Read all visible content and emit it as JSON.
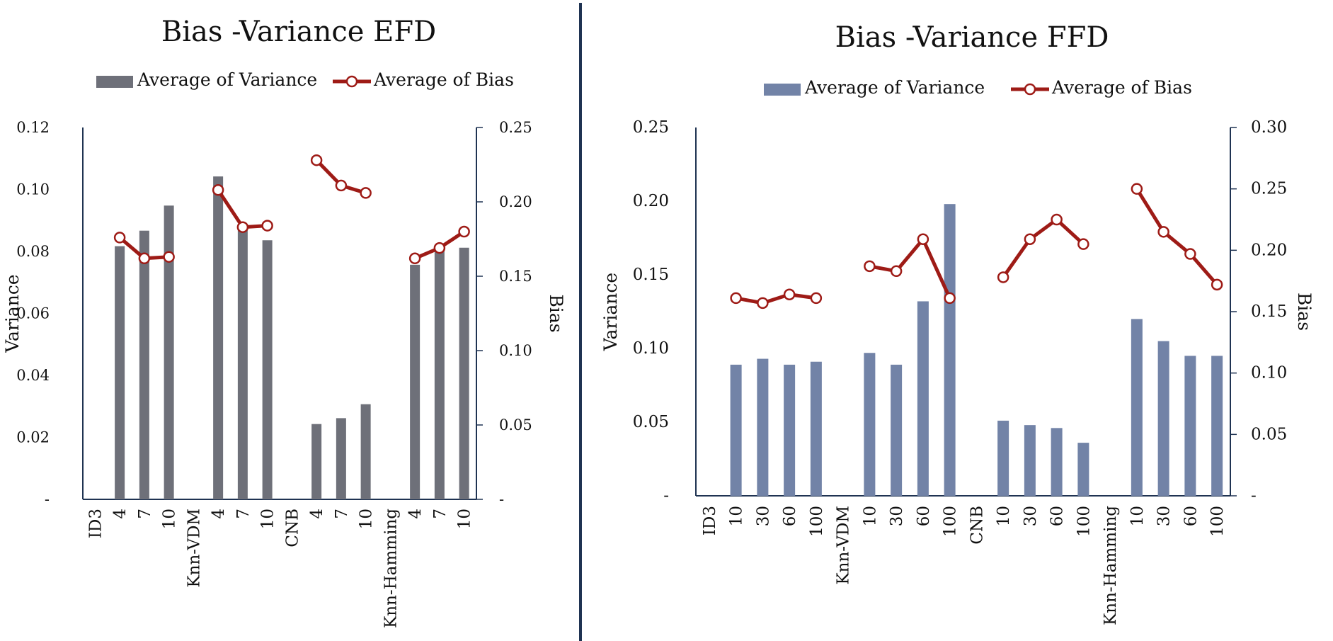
{
  "chart_data": [
    {
      "type": "bar",
      "title": "Bias -Variance EFD",
      "categories": [
        "ID3",
        "4",
        "7",
        "10",
        "Knn-VDM",
        "4",
        "7",
        "10",
        "CNB",
        "4",
        "7",
        "10",
        "Knn-Hamming",
        "4",
        "7",
        "10"
      ],
      "series": [
        {
          "name": "Average of Variance",
          "type": "bar",
          "axis": "left",
          "color": "#6e7079",
          "values": [
            null,
            0.0817,
            0.0867,
            0.0948,
            null,
            0.1042,
            0.0883,
            0.0836,
            null,
            0.0243,
            0.0262,
            0.0307,
            null,
            0.0757,
            0.0817,
            0.0812
          ]
        },
        {
          "name": "Average of Bias",
          "type": "line",
          "axis": "right",
          "color": "#9e1b16",
          "values": [
            null,
            0.176,
            0.162,
            0.163,
            null,
            0.208,
            0.183,
            0.184,
            null,
            0.228,
            0.211,
            0.206,
            null,
            0.162,
            0.169,
            0.18
          ]
        }
      ],
      "ylabel": "Variance",
      "ylim": [
        0,
        0.12
      ],
      "yticks": [
        "-",
        "0.02",
        "0.04",
        "0.06",
        "0.08",
        "0.10",
        "0.12"
      ],
      "y2label": "Bias",
      "y2lim": [
        0,
        0.25
      ],
      "y2ticks": [
        "-",
        "0.05",
        "0.10",
        "0.15",
        "0.20",
        "0.25"
      ],
      "legend": "top",
      "grid": false
    },
    {
      "type": "bar",
      "title": "Bias -Variance FFD",
      "categories": [
        "ID3",
        "10",
        "30",
        "60",
        "100",
        "Knn-VDM",
        "10",
        "30",
        "60",
        "100",
        "CNB",
        "10",
        "30",
        "60",
        "100",
        "Knn-Hamming",
        "10",
        "30",
        "60",
        "100"
      ],
      "series": [
        {
          "name": "Average of Variance",
          "type": "bar",
          "axis": "left",
          "color": "#7283a7",
          "values": [
            null,
            0.089,
            0.093,
            0.089,
            0.091,
            null,
            0.097,
            0.089,
            0.132,
            0.198,
            null,
            0.051,
            0.048,
            0.046,
            0.036,
            null,
            0.12,
            0.105,
            0.095,
            0.095
          ]
        },
        {
          "name": "Average of Bias",
          "type": "line",
          "axis": "right",
          "color": "#9e1b16",
          "values": [
            null,
            0.161,
            0.157,
            0.164,
            0.161,
            null,
            0.187,
            0.183,
            0.209,
            0.161,
            null,
            0.178,
            0.209,
            0.225,
            0.205,
            null,
            0.25,
            0.215,
            0.197,
            0.172
          ]
        }
      ],
      "ylabel": "Variance",
      "ylim": [
        0,
        0.25
      ],
      "yticks": [
        "-",
        "0.05",
        "0.10",
        "0.15",
        "0.20",
        "0.25"
      ],
      "y2label": "Bias",
      "y2lim": [
        0,
        0.3
      ],
      "y2ticks": [
        "-",
        "0.05",
        "0.10",
        "0.15",
        "0.20",
        "0.25",
        "0.30"
      ],
      "legend": "top",
      "grid": false
    }
  ],
  "colors": {
    "divider": "#1f3352",
    "axis": "#1f3352",
    "marker_fill": "#ffffff"
  }
}
